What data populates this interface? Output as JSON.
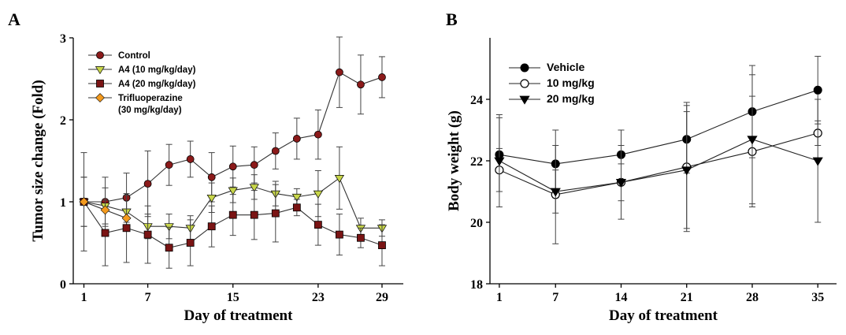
{
  "panels": {
    "a_letter": "A",
    "b_letter": "B"
  },
  "chart_data": [
    {
      "type": "line",
      "panel": "A",
      "xlabel": "Day of treatment",
      "ylabel": "Tumor size change (Fold)",
      "xlim": [
        0,
        31
      ],
      "ylim": [
        0,
        3.0
      ],
      "xticks": [
        1,
        7,
        15,
        23,
        29
      ],
      "yticks": [
        0,
        1,
        2,
        3
      ],
      "grid": false,
      "legend_position": "top-left",
      "series": [
        {
          "name": "Control",
          "color": "#8b1a1a",
          "marker": "circle",
          "x": [
            1,
            3,
            5,
            7,
            9,
            11,
            13,
            15,
            17,
            19,
            21,
            23,
            25,
            27,
            29
          ],
          "y": [
            1.0,
            1.0,
            1.05,
            1.22,
            1.45,
            1.52,
            1.3,
            1.43,
            1.45,
            1.62,
            1.77,
            1.82,
            2.58,
            2.43,
            2.52
          ],
          "err": [
            0.6,
            0.3,
            0.3,
            0.4,
            0.25,
            0.22,
            0.3,
            0.25,
            0.22,
            0.22,
            0.25,
            0.3,
            0.43,
            0.36,
            0.25
          ]
        },
        {
          "name": "A4 (10 mg/kg/day)",
          "color": "#c8d64a",
          "marker": "triangle-down",
          "x": [
            1,
            3,
            5,
            7,
            9,
            11,
            13,
            15,
            17,
            19,
            21,
            23,
            25,
            27,
            29
          ],
          "y": [
            1.0,
            0.95,
            0.88,
            0.7,
            0.7,
            0.68,
            1.05,
            1.14,
            1.18,
            1.1,
            1.06,
            1.1,
            1.29,
            0.68,
            0.68
          ],
          "err": [
            0.3,
            0.22,
            0.2,
            0.15,
            0.15,
            0.15,
            0.18,
            0.15,
            0.15,
            0.15,
            0.1,
            0.28,
            0.38,
            0.12,
            0.1
          ]
        },
        {
          "name": "A4 (20 mg/kg/day)",
          "color": "#7a1414",
          "marker": "square",
          "x": [
            1,
            3,
            5,
            7,
            9,
            11,
            13,
            15,
            17,
            19,
            21,
            23,
            25,
            27,
            29
          ],
          "y": [
            1.0,
            0.62,
            0.68,
            0.6,
            0.44,
            0.5,
            0.7,
            0.84,
            0.84,
            0.86,
            0.93,
            0.72,
            0.6,
            0.56,
            0.47
          ],
          "err": [
            0.3,
            0.4,
            0.42,
            0.35,
            0.25,
            0.28,
            0.25,
            0.25,
            0.3,
            0.35,
            0.1,
            0.25,
            0.25,
            0.12,
            0.25
          ]
        },
        {
          "name": "Trifluoperazine\n(30 mg/kg/day)",
          "color": "#f39a1e",
          "marker": "diamond",
          "x": [
            1,
            3,
            5
          ],
          "y": [
            1.0,
            0.9,
            0.8
          ],
          "err": [
            0.0,
            0.0,
            0.0
          ]
        }
      ]
    },
    {
      "type": "line",
      "panel": "B",
      "xlabel": "Day of treatment",
      "ylabel": "Body weight (g)",
      "xlim": [
        0,
        37
      ],
      "ylim": [
        18,
        26
      ],
      "xticks": [
        1,
        7,
        14,
        21,
        28,
        35
      ],
      "yticks": [
        18,
        20,
        22,
        24
      ],
      "grid": false,
      "legend_position": "top-left",
      "series": [
        {
          "name": "Vehicle",
          "color": "#000000",
          "marker": "circle-filled",
          "x": [
            1,
            7,
            14,
            21,
            28,
            35
          ],
          "y": [
            22.2,
            21.9,
            22.2,
            22.7,
            23.6,
            24.3
          ],
          "err": [
            1.2,
            1.1,
            0.8,
            1.1,
            1.5,
            1.1
          ]
        },
        {
          "name": "10 mg/kg",
          "color": "#000000",
          "marker": "circle-open",
          "x": [
            1,
            7,
            14,
            21,
            28,
            35
          ],
          "y": [
            21.7,
            20.9,
            21.3,
            21.8,
            22.3,
            22.9
          ],
          "err": [
            0.7,
            1.6,
            0.6,
            2.1,
            1.8,
            0.4
          ]
        },
        {
          "name": "20 mg/kg",
          "color": "#000000",
          "marker": "triangle-down-filled",
          "x": [
            1,
            7,
            14,
            21,
            28,
            35
          ],
          "y": [
            22.0,
            21.0,
            21.3,
            21.7,
            22.7,
            22.0
          ],
          "err": [
            1.5,
            0.7,
            1.2,
            1.9,
            2.1,
            2.0
          ]
        }
      ]
    }
  ]
}
